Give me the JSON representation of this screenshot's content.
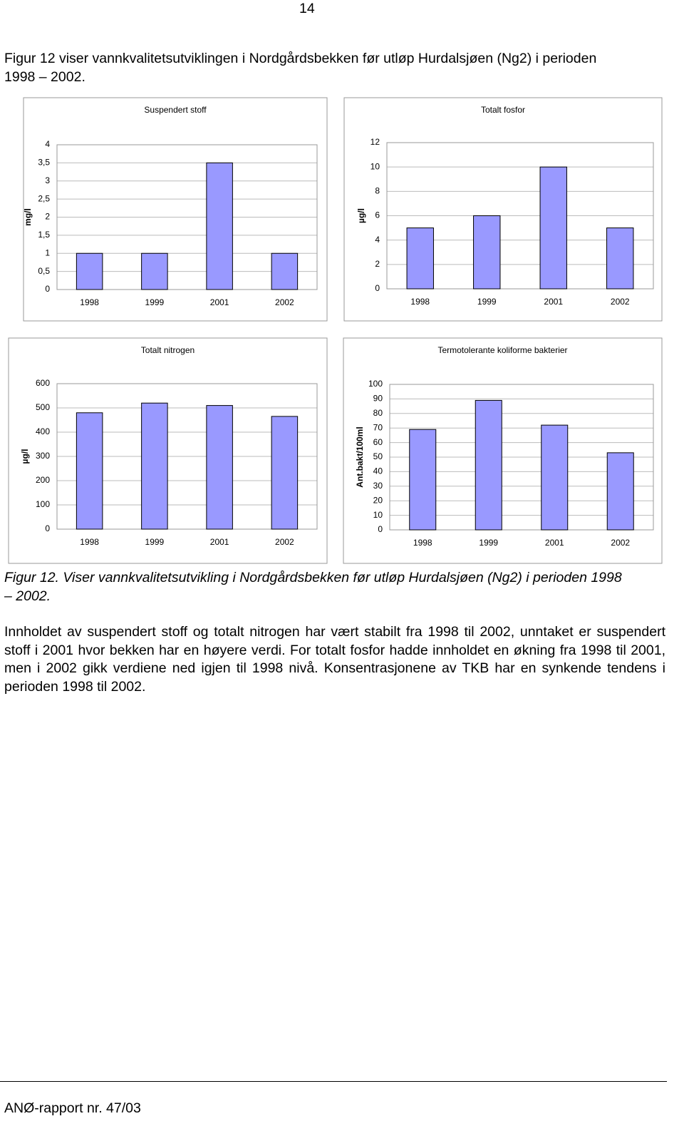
{
  "page_number": "14",
  "intro": "Figur 12 viser vannkvalitetsutviklingen i Nordgårdsbekken før utløp Hurdalsjøen (Ng2) i perioden 1998 – 2002.",
  "chart_data": [
    {
      "type": "bar",
      "title": "Suspendert stoff",
      "y_label": "mg/l",
      "categories": [
        "1998",
        "1999",
        "2001",
        "2002"
      ],
      "values": [
        1,
        1,
        3.5,
        1
      ],
      "color": "#9999ff",
      "ylim": [
        0,
        4
      ],
      "yticks": [
        0,
        {
          "value": 0.5,
          "label": "0,5"
        },
        1,
        {
          "value": 1.5,
          "label": "1,5"
        },
        2,
        {
          "value": 2.5,
          "label": "2,5"
        },
        3,
        {
          "value": 3.5,
          "label": "3,5"
        },
        4
      ],
      "grid": true
    },
    {
      "type": "bar",
      "title": "Totalt fosfor",
      "y_label": "µg/l",
      "categories": [
        "1998",
        "1999",
        "2001",
        "2002"
      ],
      "values": [
        5,
        6,
        10,
        5
      ],
      "color": "#9999ff",
      "ylim": [
        0,
        12
      ],
      "yticks": [
        0,
        2,
        4,
        6,
        8,
        10,
        12
      ],
      "grid": true
    },
    {
      "type": "bar",
      "title": "Totalt nitrogen",
      "y_label": "µg/l",
      "categories": [
        "1998",
        "1999",
        "2001",
        "2002"
      ],
      "values": [
        480,
        520,
        510,
        465
      ],
      "color": "#9999ff",
      "ylim": [
        0,
        600
      ],
      "yticks": [
        0,
        100,
        200,
        300,
        400,
        500,
        600
      ],
      "grid": true
    },
    {
      "type": "bar",
      "title": "Termotolerante koliforme bakterier",
      "y_label": "Ant.bakt/100ml",
      "categories": [
        "1998",
        "1999",
        "2001",
        "2002"
      ],
      "values": [
        69,
        89,
        72,
        53
      ],
      "color": "#9999ff",
      "ylim": [
        0,
        100
      ],
      "yticks": [
        0,
        10,
        20,
        30,
        40,
        50,
        60,
        70,
        80,
        90,
        100
      ],
      "grid": true
    }
  ],
  "caption": "Figur 12. Viser vannkvalitetsutvikling i Nordgårdsbekken før utløp Hurdalsjøen (Ng2) i perioden 1998 – 2002.",
  "body": "Innholdet av suspendert stoff og totalt nitrogen har vært stabilt fra 1998 til 2002, unntaket er suspendert stoff i 2001 hvor bekken har en høyere verdi. For totalt fosfor hadde innholdet en økning fra 1998 til 2001, men i 2002 gikk verdiene ned igjen til 1998 nivå. Konsentrasjonene av TKB har en synkende tendens i perioden 1998 til 2002.",
  "footer": "ANØ-rapport nr. 47/03"
}
